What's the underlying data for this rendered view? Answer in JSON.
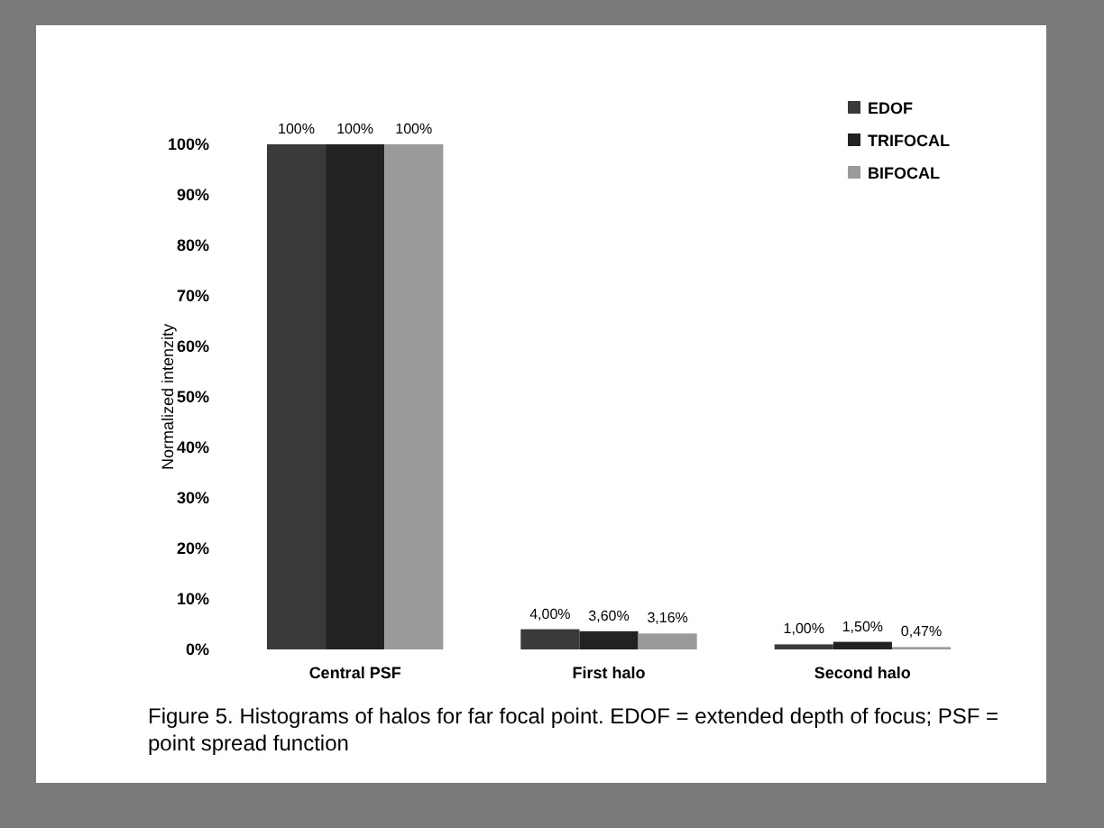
{
  "chart_data": {
    "type": "bar",
    "ylabel": "Normalized intenzity",
    "categories": [
      "Central PSF",
      "First halo",
      "Second halo"
    ],
    "series": [
      {
        "name": "EDOF",
        "color": "#3a3a3a",
        "values": [
          100,
          4.0,
          1.0
        ],
        "value_labels": [
          "100%",
          "4,00%",
          "1,00%"
        ]
      },
      {
        "name": "TRIFOCAL",
        "color": "#222222",
        "values": [
          100,
          3.6,
          1.5
        ],
        "value_labels": [
          "100%",
          "3,60%",
          "1,50%"
        ]
      },
      {
        "name": "BIFOCAL",
        "color": "#9a9a9a",
        "values": [
          100,
          3.16,
          0.47
        ],
        "value_labels": [
          "100%",
          "3,16%",
          "0,47%"
        ]
      }
    ],
    "ylim": [
      0,
      100
    ],
    "yticks": [
      {
        "value": 0,
        "label": "0%"
      },
      {
        "value": 10,
        "label": "10%"
      },
      {
        "value": 20,
        "label": "20%"
      },
      {
        "value": 30,
        "label": "30%"
      },
      {
        "value": 40,
        "label": "40%"
      },
      {
        "value": 50,
        "label": "50%"
      },
      {
        "value": 60,
        "label": "60%"
      },
      {
        "value": 70,
        "label": "70%"
      },
      {
        "value": 80,
        "label": "80%"
      },
      {
        "value": 90,
        "label": "90%"
      },
      {
        "value": 100,
        "label": "100%"
      }
    ],
    "grid": false,
    "legend": "top right",
    "annotations": [
      "Figure 5. Histograms of halos for far focal point. EDOF = extended depth of focus; PSF = point spread function"
    ]
  }
}
